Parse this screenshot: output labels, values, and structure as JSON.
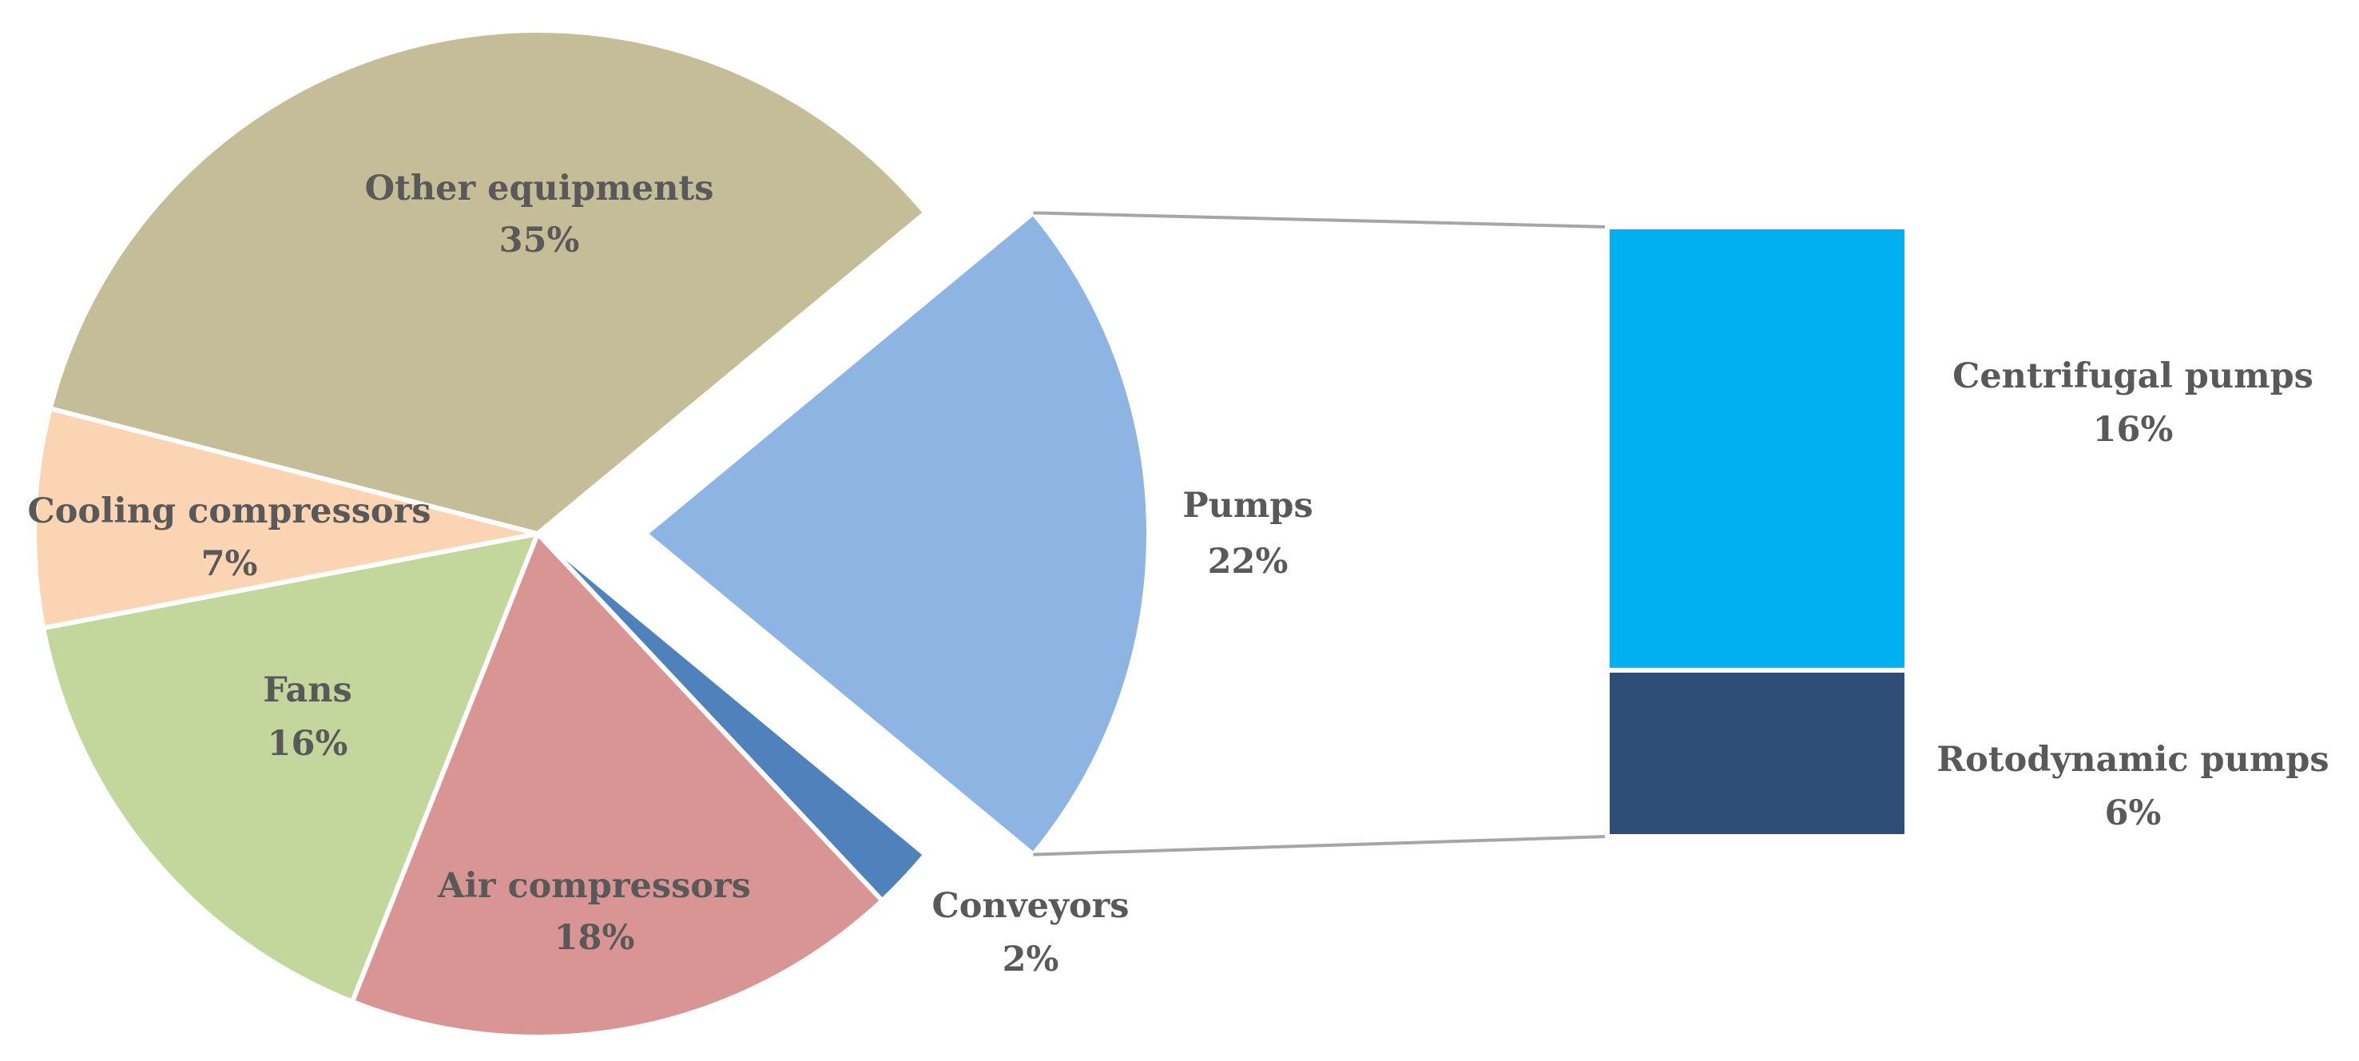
{
  "chart_data": {
    "type": "pie",
    "title": "",
    "slices": [
      {
        "label": "Other equipments",
        "value": 35,
        "display": "35%",
        "color": "#C4BD97"
      },
      {
        "label": "Pumps",
        "value": 22,
        "display": "22%",
        "color": "#8EB4E3"
      },
      {
        "label": "Conveyors",
        "value": 2,
        "display": "2%",
        "color": "#4F81BD"
      },
      {
        "label": "Air compressors",
        "value": 18,
        "display": "18%",
        "color": "#D99594"
      },
      {
        "label": "Fans",
        "value": 16,
        "display": "16%",
        "color": "#C3D69B"
      },
      {
        "label": "Cooling compressors",
        "value": 7,
        "display": "7%",
        "color": "#FBD4B4"
      }
    ],
    "breakdown": {
      "of": "Pumps",
      "items": [
        {
          "label": "Centrifugal pumps",
          "value": 16,
          "display": "16%",
          "color": "#00B0F0"
        },
        {
          "label": "Rotodynamic pumps",
          "value": 6,
          "display": "6%",
          "color": "#2E4E77"
        }
      ]
    },
    "exploded_slice": "Pumps",
    "legend": "none"
  }
}
